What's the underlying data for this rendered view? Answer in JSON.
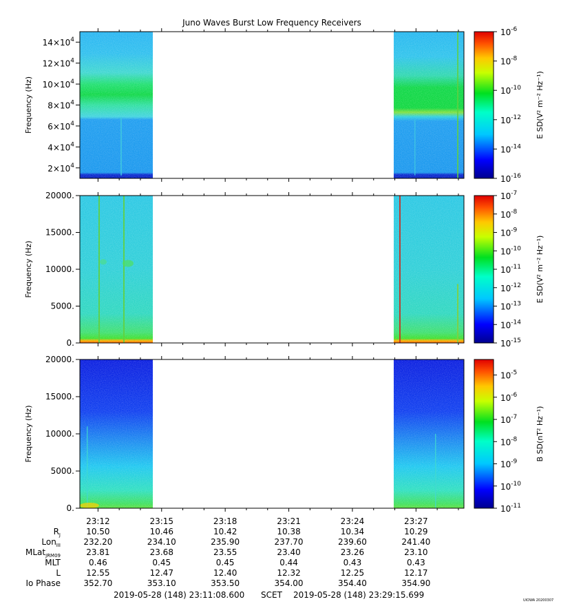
{
  "chart_data": {
    "type": "heatmap",
    "title": "Juno Waves Burst Low Frequency Receivers",
    "data_gap": {
      "start": "23:13:50",
      "end": "23:25:58"
    },
    "time_axis": {
      "range": [
        "2019-05-28 23:11:08.600",
        "2019-05-28 23:29:15.699"
      ],
      "ticks": [
        "23:12",
        "23:15",
        "23:18",
        "23:21",
        "23:24",
        "23:27"
      ]
    },
    "panels": [
      {
        "id": "panel1",
        "ylabel": "Frequency (Hz)",
        "yticks": [
          {
            "value": 20000,
            "mant": "2",
            "exp": "4"
          },
          {
            "value": 40000,
            "mant": "4",
            "exp": "4"
          },
          {
            "value": 60000,
            "mant": "6",
            "exp": "4"
          },
          {
            "value": 80000,
            "mant": "8",
            "exp": "4"
          },
          {
            "value": 100000,
            "mant": "10",
            "exp": "4"
          },
          {
            "value": 120000,
            "mant": "12",
            "exp": "4"
          },
          {
            "value": 140000,
            "mant": "14",
            "exp": "4"
          }
        ],
        "ylim": [
          10000,
          150000
        ],
        "colorbar": {
          "label": "E SD(V² m⁻² Hz⁻¹)",
          "range_exp": [
            -16,
            -6
          ],
          "ticks": [
            {
              "value": -6,
              "base": "10",
              "exp": "-6"
            },
            {
              "value": -8,
              "base": "10",
              "exp": "-8"
            },
            {
              "value": -10,
              "base": "10",
              "exp": "-10"
            },
            {
              "value": -12,
              "base": "10",
              "exp": "-12"
            },
            {
              "value": -14,
              "base": "10",
              "exp": "-14"
            },
            {
              "value": -16,
              "base": "10",
              "exp": "-16"
            }
          ]
        }
      },
      {
        "id": "panel2",
        "ylabel": "Frequency (Hz)",
        "yticks": [
          {
            "value": 0,
            "label": "0."
          },
          {
            "value": 5000,
            "label": "5000."
          },
          {
            "value": 10000,
            "label": "10000."
          },
          {
            "value": 15000,
            "label": "15000."
          },
          {
            "value": 20000,
            "label": "20000."
          }
        ],
        "ylim": [
          0,
          20000
        ],
        "colorbar": {
          "label": "E SD(V² m⁻² Hz⁻¹)",
          "range_exp": [
            -15,
            -7
          ],
          "ticks": [
            {
              "value": -7,
              "base": "10",
              "exp": "-7"
            },
            {
              "value": -8,
              "base": "10",
              "exp": "-8"
            },
            {
              "value": -9,
              "base": "10",
              "exp": "-9"
            },
            {
              "value": -10,
              "base": "10",
              "exp": "-10"
            },
            {
              "value": -11,
              "base": "10",
              "exp": "-11"
            },
            {
              "value": -12,
              "base": "10",
              "exp": "-12"
            },
            {
              "value": -13,
              "base": "10",
              "exp": "-13"
            },
            {
              "value": -14,
              "base": "10",
              "exp": "-14"
            },
            {
              "value": -15,
              "base": "10",
              "exp": "-15"
            }
          ]
        }
      },
      {
        "id": "panel3",
        "ylabel": "Frequency (Hz)",
        "yticks": [
          {
            "value": 0,
            "label": "0."
          },
          {
            "value": 5000,
            "label": "5000."
          },
          {
            "value": 10000,
            "label": "10000."
          },
          {
            "value": 15000,
            "label": "15000."
          },
          {
            "value": 20000,
            "label": "20000."
          }
        ],
        "ylim": [
          0,
          20000
        ],
        "colorbar": {
          "label": "B SD(nT² Hz⁻¹)",
          "range_exp": [
            -11,
            -4.3
          ],
          "ticks": [
            {
              "value": -5,
              "base": "10",
              "exp": "-5"
            },
            {
              "value": -6,
              "base": "10",
              "exp": "-6"
            },
            {
              "value": -7,
              "base": "10",
              "exp": "-7"
            },
            {
              "value": -8,
              "base": "10",
              "exp": "-8"
            },
            {
              "value": -9,
              "base": "10",
              "exp": "-9"
            },
            {
              "value": -10,
              "base": "10",
              "exp": "-10"
            },
            {
              "value": -11,
              "base": "10",
              "exp": "-11"
            }
          ]
        }
      }
    ],
    "ephemeris": {
      "rows": [
        {
          "label": "R",
          "sub": "J",
          "values": [
            "10.50",
            "10.46",
            "10.42",
            "10.38",
            "10.34",
            "10.29"
          ]
        },
        {
          "label": "Lon",
          "sub": "III",
          "values": [
            "232.20",
            "234.10",
            "235.90",
            "237.70",
            "239.60",
            "241.40"
          ]
        },
        {
          "label": "MLat",
          "sub": "JRM09",
          "values": [
            "23.81",
            "23.68",
            "23.55",
            "23.40",
            "23.26",
            "23.10"
          ]
        },
        {
          "label": "MLT",
          "sub": "",
          "values": [
            "0.46",
            "0.45",
            "0.45",
            "0.44",
            "0.43",
            "0.43"
          ]
        },
        {
          "label": "L",
          "sub": "",
          "values": [
            "12.55",
            "12.47",
            "12.40",
            "12.32",
            "12.25",
            "12.17"
          ]
        },
        {
          "label": "Io Phase",
          "sub": "",
          "values": [
            "352.70",
            "353.10",
            "353.50",
            "354.00",
            "354.40",
            "354.90"
          ]
        }
      ]
    },
    "footer": {
      "start": "2019-05-28 (148) 23:11:08.600",
      "frame": "SCET",
      "end": "2019-05-28 (148) 23:29:15.699",
      "stamp": "UIOWA 20200307"
    }
  }
}
